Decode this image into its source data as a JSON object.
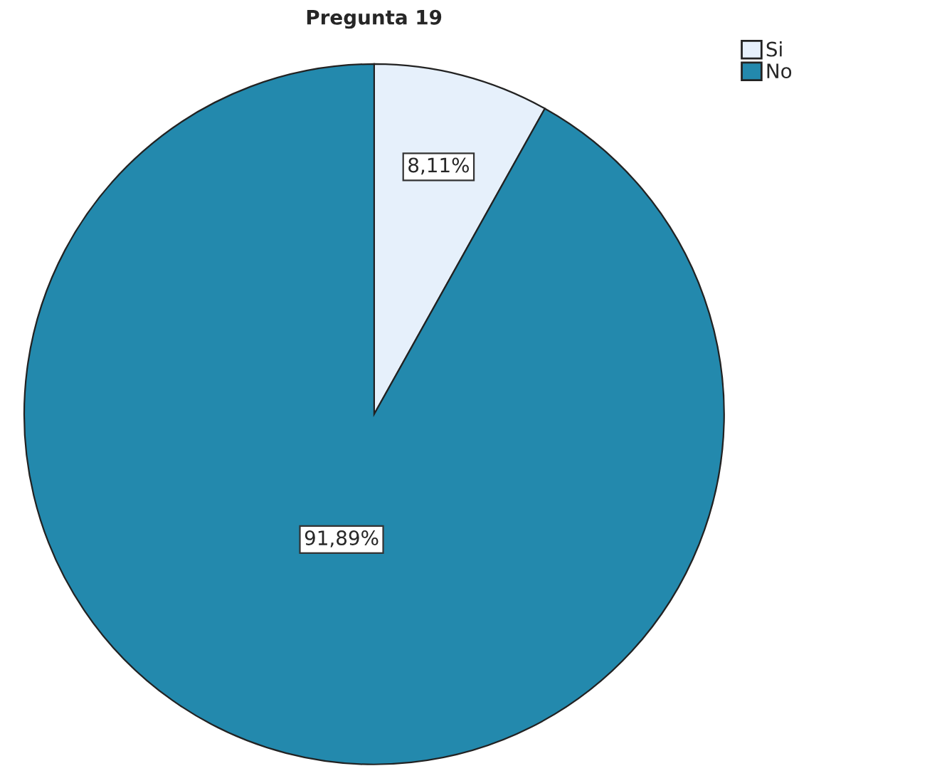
{
  "chart_data": {
    "type": "pie",
    "title": "Pregunta 19",
    "categories": [
      "Si",
      "No"
    ],
    "values": [
      8.11,
      91.89
    ],
    "colors": [
      "#e6f0fb",
      "#2389ad"
    ],
    "value_labels": [
      "8,11%",
      "91,89%"
    ],
    "legend": "top right"
  }
}
